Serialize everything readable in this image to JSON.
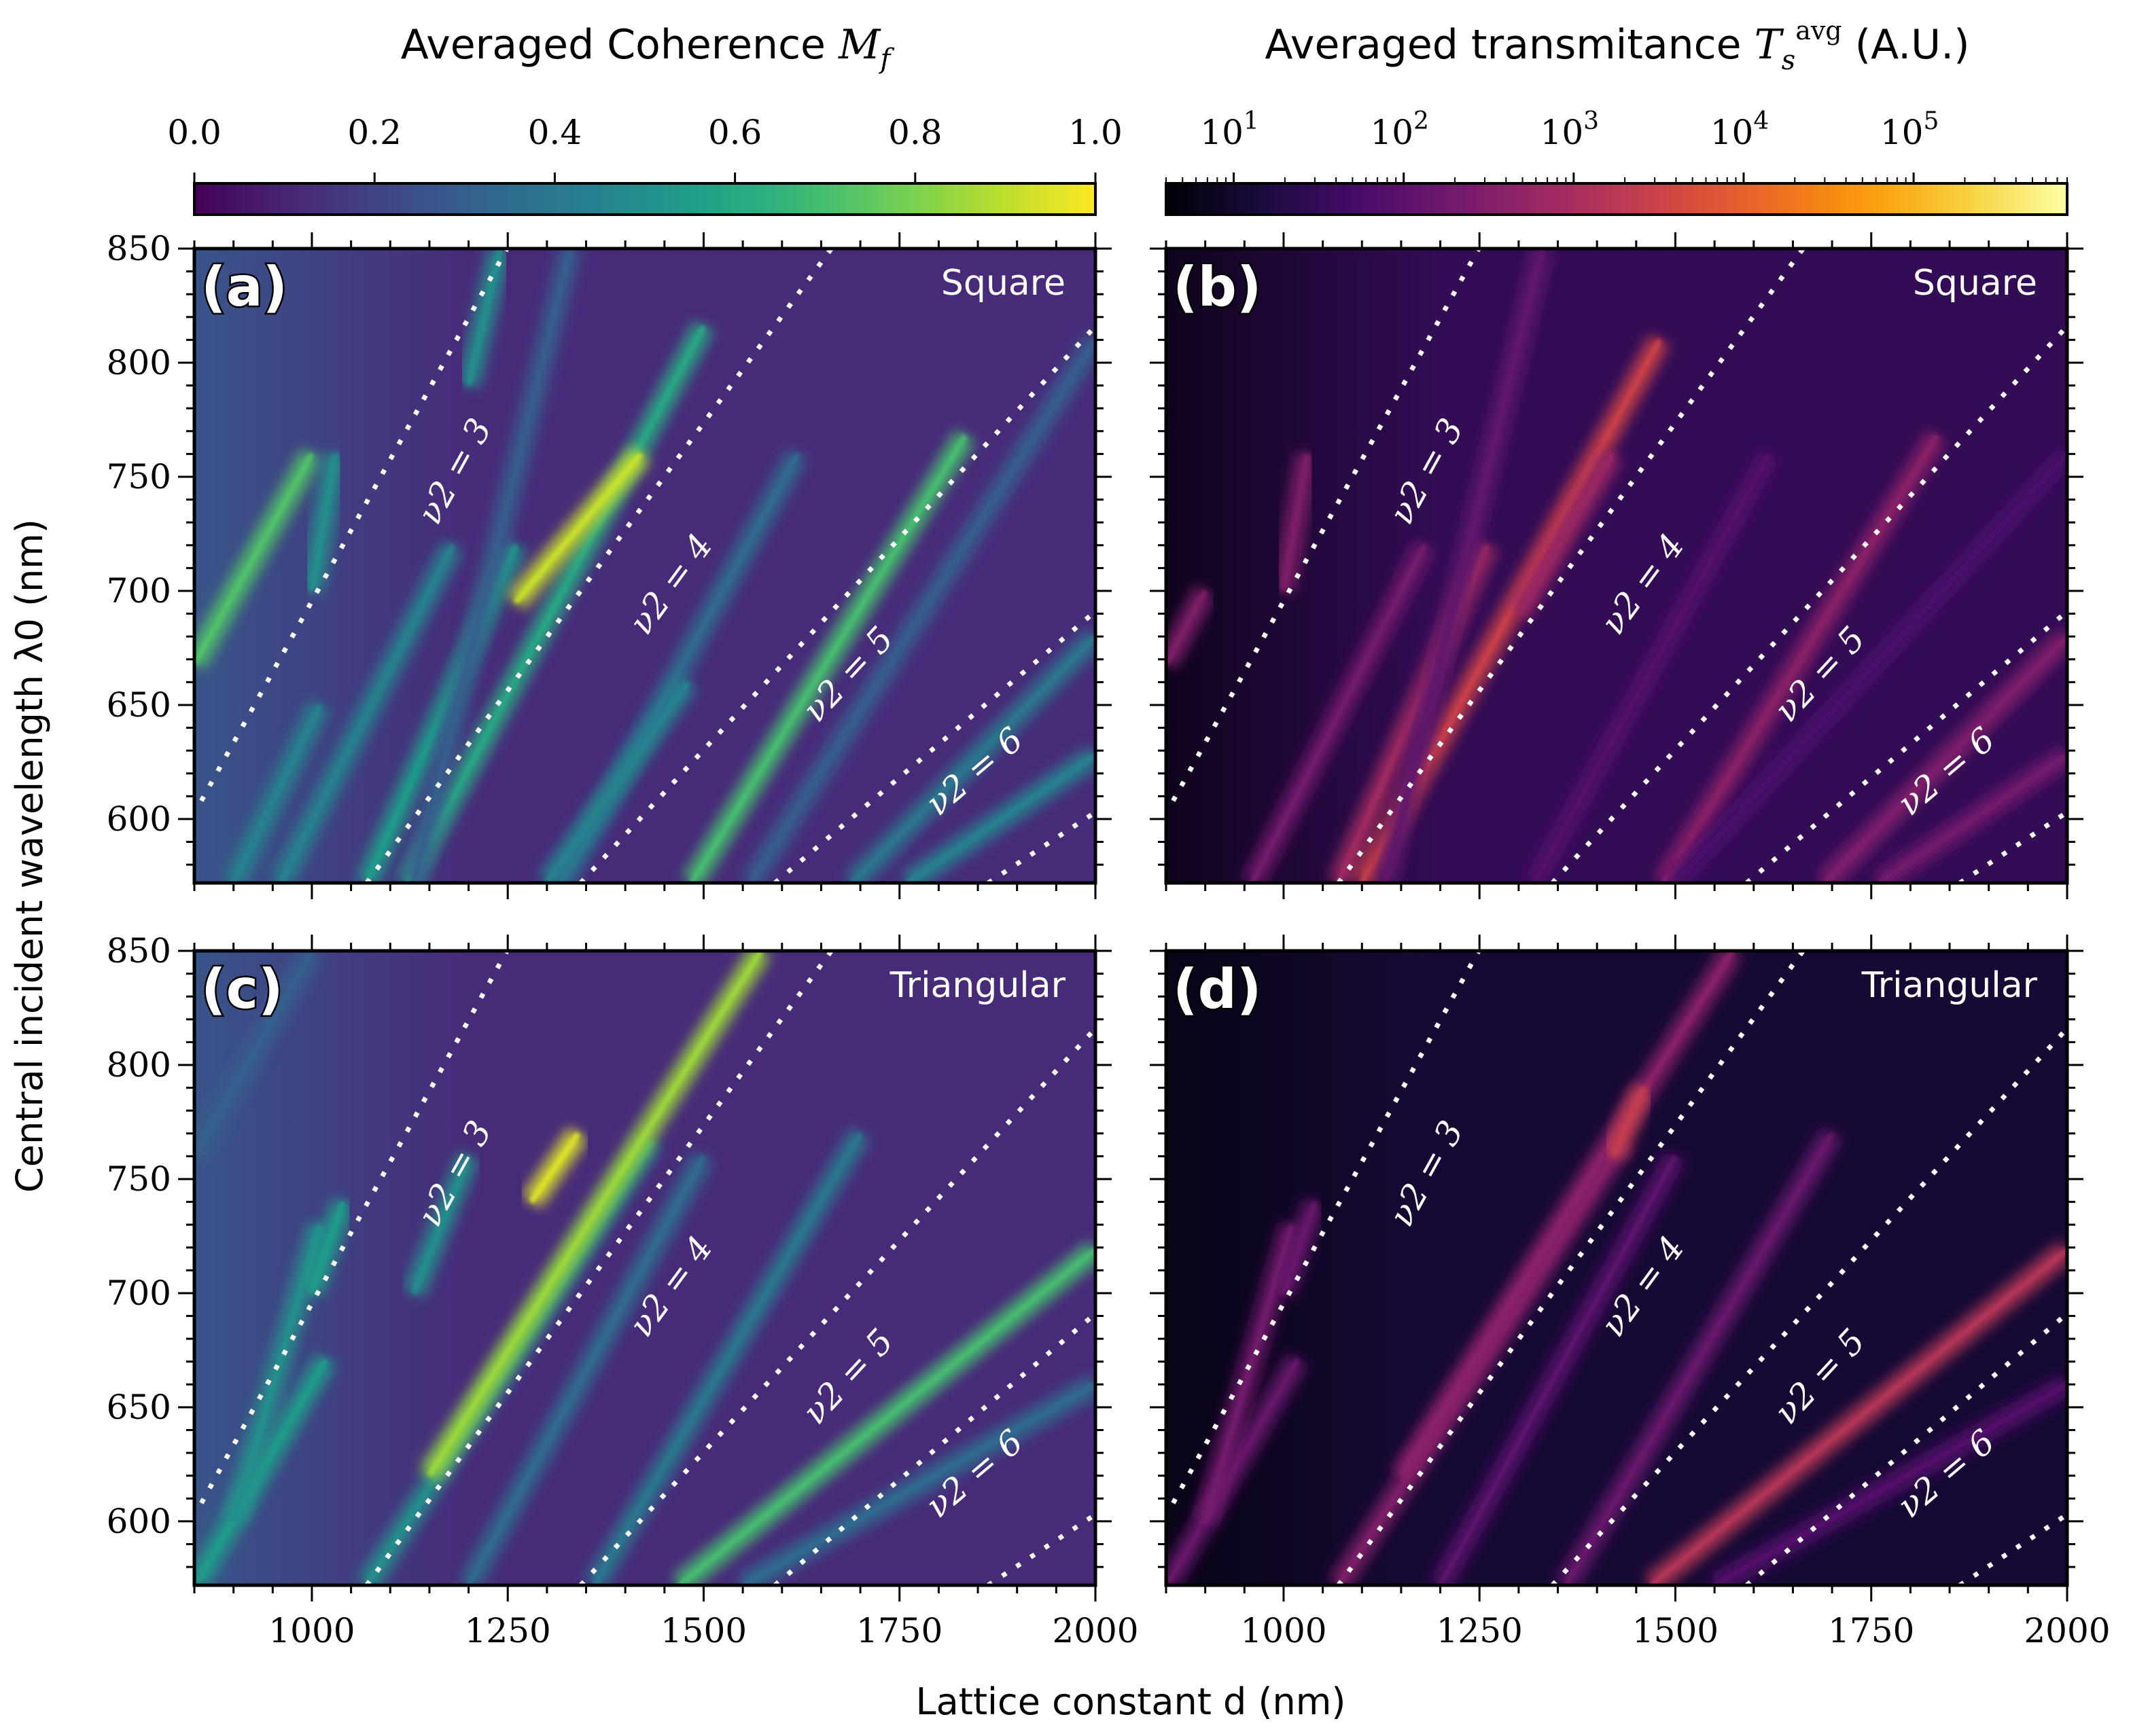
{
  "colorbars": [
    {
      "title": "Averaged Coherence M_f",
      "title_main": "Averaged Coherence ",
      "title_var": "M",
      "title_sub": "f",
      "cmap": "viridis",
      "scale": "linear",
      "range": [
        0,
        1
      ],
      "ticks": [
        "0.0",
        "0.2",
        "0.4",
        "0.6",
        "0.8",
        "1.0"
      ]
    },
    {
      "title": "Averaged transmitance T_s^avg (A.U.)",
      "title_main": "Averaged transmitance ",
      "title_var": "T",
      "title_sub": "s",
      "title_sup": "avg",
      "title_unit": " (A.U.)",
      "cmap": "inferno",
      "scale": "log",
      "range": [
        4,
        800000
      ],
      "ticks": [
        "10",
        "10",
        "10",
        "10",
        "10"
      ],
      "tick_exps": [
        "1",
        "2",
        "3",
        "4",
        "5"
      ]
    }
  ],
  "axes": {
    "xlabel": "Lattice constant d (nm)",
    "ylabel": "Central incident wavelength λ0 (nm)",
    "xticks": [
      "1000",
      "1250",
      "1500",
      "1750",
      "2000"
    ],
    "yticks": [
      "600",
      "650",
      "700",
      "750",
      "800",
      "850"
    ],
    "xlim": [
      850,
      2000
    ],
    "ylim": [
      572,
      850
    ]
  },
  "chart_data": [
    {
      "type": "heatmap",
      "panel": "(a)",
      "lattice": "Square",
      "cmap": "viridis",
      "quantity": "Averaged Coherence",
      "background": 0.12,
      "streaks": [
        [
          850,
          668,
          1000,
          760,
          0.72
        ],
        [
          900,
          572,
          1010,
          650,
          0.45
        ],
        [
          1000,
          700,
          1030,
          760,
          0.5
        ],
        [
          960,
          572,
          1180,
          720,
          0.45
        ],
        [
          1070,
          572,
          1260,
          720,
          0.55
        ],
        [
          1122,
          572,
          1500,
          816,
          0.6
        ],
        [
          1260,
          695,
          1420,
          760,
          0.92
        ],
        [
          1320,
          572,
          1620,
          760,
          0.35
        ],
        [
          1485,
          572,
          1834,
          768,
          0.7
        ],
        [
          1560,
          572,
          2000,
          810,
          0.3
        ],
        [
          1690,
          572,
          2000,
          680,
          0.4
        ],
        [
          1760,
          572,
          2000,
          628,
          0.45
        ],
        [
          1130,
          572,
          1330,
          850,
          0.3
        ],
        [
          1300,
          572,
          1480,
          660,
          0.45
        ],
        [
          1200,
          790,
          1240,
          850,
          0.5
        ]
      ],
      "orders": [
        {
          "label": "ν2 = 3",
          "x1": 859,
          "y1": 608,
          "x2": 1249,
          "y2": 850,
          "lx": 1195,
          "ly": 750
        },
        {
          "label": "ν2 = 4",
          "x1": 1070,
          "y1": 572,
          "x2": 1663,
          "y2": 850,
          "lx": 1470,
          "ly": 700
        },
        {
          "label": "ν2 = 5",
          "x1": 1343,
          "y1": 572,
          "x2": 2000,
          "y2": 816,
          "lx": 1695,
          "ly": 660
        },
        {
          "label": "ν2 = 6",
          "x1": 1591,
          "y1": 572,
          "x2": 2000,
          "y2": 691,
          "lx": 1855,
          "ly": 617
        },
        {
          "label": "",
          "x1": 1863,
          "y1": 572,
          "x2": 2000,
          "y2": 603
        }
      ]
    },
    {
      "type": "heatmap",
      "panel": "(b)",
      "lattice": "Square",
      "cmap": "inferno",
      "quantity": "Averaged transmitance",
      "background": 30,
      "streaks": [
        [
          850,
          668,
          900,
          700,
          300
        ],
        [
          960,
          572,
          1180,
          720,
          200
        ],
        [
          1000,
          700,
          1030,
          760,
          300
        ],
        [
          1070,
          572,
          1260,
          720,
          800
        ],
        [
          1100,
          572,
          1480,
          810,
          3000
        ],
        [
          1130,
          572,
          1330,
          850,
          120
        ],
        [
          1300,
          690,
          1420,
          760,
          600
        ],
        [
          1320,
          572,
          1620,
          760,
          80
        ],
        [
          1485,
          572,
          1834,
          768,
          400
        ],
        [
          1690,
          572,
          2000,
          680,
          300
        ],
        [
          1760,
          572,
          2000,
          628,
          200
        ],
        [
          1500,
          572,
          2000,
          760,
          60
        ]
      ],
      "orders": "same as (a)"
    },
    {
      "type": "heatmap",
      "panel": "(c)",
      "lattice": "Triangular",
      "cmap": "viridis",
      "quantity": "Averaged Coherence",
      "background": 0.12,
      "streaks": [
        [
          850,
          760,
          1000,
          850,
          0.3
        ],
        [
          853,
          573,
          1018,
          671,
          0.55
        ],
        [
          900,
          600,
          1010,
          730,
          0.5
        ],
        [
          1000,
          700,
          1040,
          740,
          0.55
        ],
        [
          1070,
          572,
          1434,
          767,
          0.5
        ],
        [
          1150,
          620,
          1573,
          850,
          0.85
        ],
        [
          1280,
          740,
          1340,
          770,
          0.95
        ],
        [
          1200,
          572,
          1500,
          760,
          0.35
        ],
        [
          1360,
          572,
          1700,
          770,
          0.4
        ],
        [
          1469,
          572,
          2000,
          719,
          0.7
        ],
        [
          1550,
          572,
          2000,
          660,
          0.35
        ],
        [
          1130,
          700,
          1200,
          760,
          0.5
        ]
      ],
      "orders": "same as (a)"
    },
    {
      "type": "heatmap",
      "panel": "(d)",
      "lattice": "Triangular",
      "cmap": "inferno",
      "quantity": "Averaged transmitance",
      "background": 12,
      "streaks": [
        [
          853,
          573,
          1018,
          671,
          150
        ],
        [
          900,
          600,
          1010,
          730,
          200
        ],
        [
          1000,
          700,
          1040,
          740,
          150
        ],
        [
          1070,
          572,
          1434,
          767,
          300
        ],
        [
          1150,
          620,
          1573,
          850,
          400
        ],
        [
          1420,
          760,
          1460,
          790,
          2500
        ],
        [
          1200,
          572,
          1500,
          760,
          100
        ],
        [
          1360,
          572,
          1700,
          770,
          150
        ],
        [
          1469,
          572,
          2000,
          719,
          1500
        ],
        [
          1550,
          572,
          2000,
          660,
          80
        ]
      ],
      "orders": "same as (a)"
    }
  ]
}
